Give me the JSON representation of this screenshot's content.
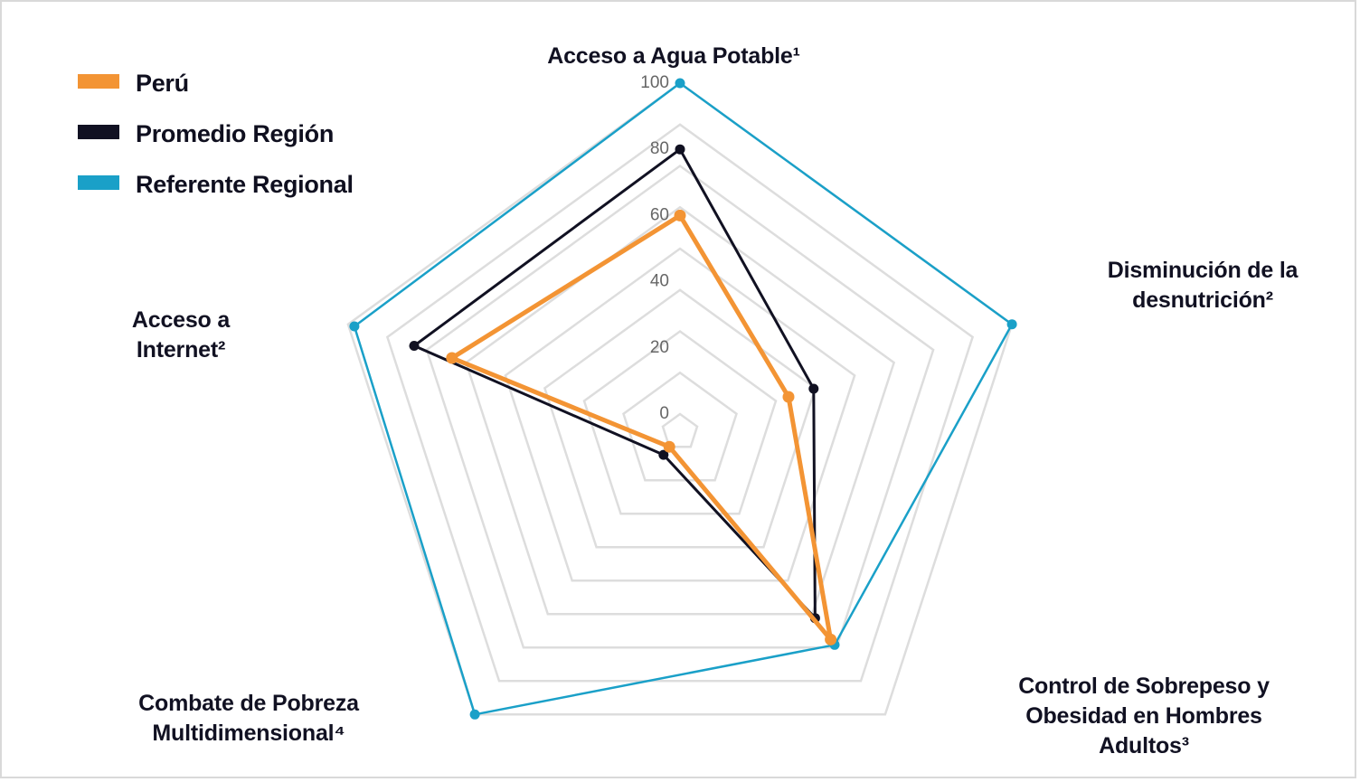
{
  "chart_data": {
    "type": "radar",
    "axes": [
      "Acceso a Agua Potable¹",
      "Disminución de la desnutrición²",
      "Control de Sobrepeso y Obesidad en Hombres Adultos³",
      "Combate de Pobreza Multidimensional⁴",
      "Acceso a Internet²"
    ],
    "axis_label_lines": [
      [
        "Acceso a Agua Potable¹"
      ],
      [
        "Disminución de la",
        "desnutrición²"
      ],
      [
        "Control de Sobrepeso y",
        "Obesidad en Hombres",
        "Adultos³"
      ],
      [
        "Combate de Pobreza",
        "Multidimensional⁴"
      ],
      [
        "Acceso a",
        "Internet²"
      ]
    ],
    "rlim": [
      0,
      100
    ],
    "ticks": [
      "0",
      "20",
      "40",
      "60",
      "80",
      "100"
    ],
    "tick_values": [
      0,
      20,
      40,
      60,
      80,
      100
    ],
    "grid": true,
    "legend_position": "top-left",
    "series": [
      {
        "name": "Perú",
        "color": "#f39434",
        "values": [
          60,
          29,
          72,
          0,
          67
        ]
      },
      {
        "name": "Promedio Región",
        "color": "#111122",
        "values": [
          80,
          37,
          64,
          3,
          79
        ]
      },
      {
        "name": "Referente Regional",
        "color": "#1aa0c8",
        "values": [
          100,
          100,
          74,
          100,
          98
        ]
      }
    ]
  }
}
